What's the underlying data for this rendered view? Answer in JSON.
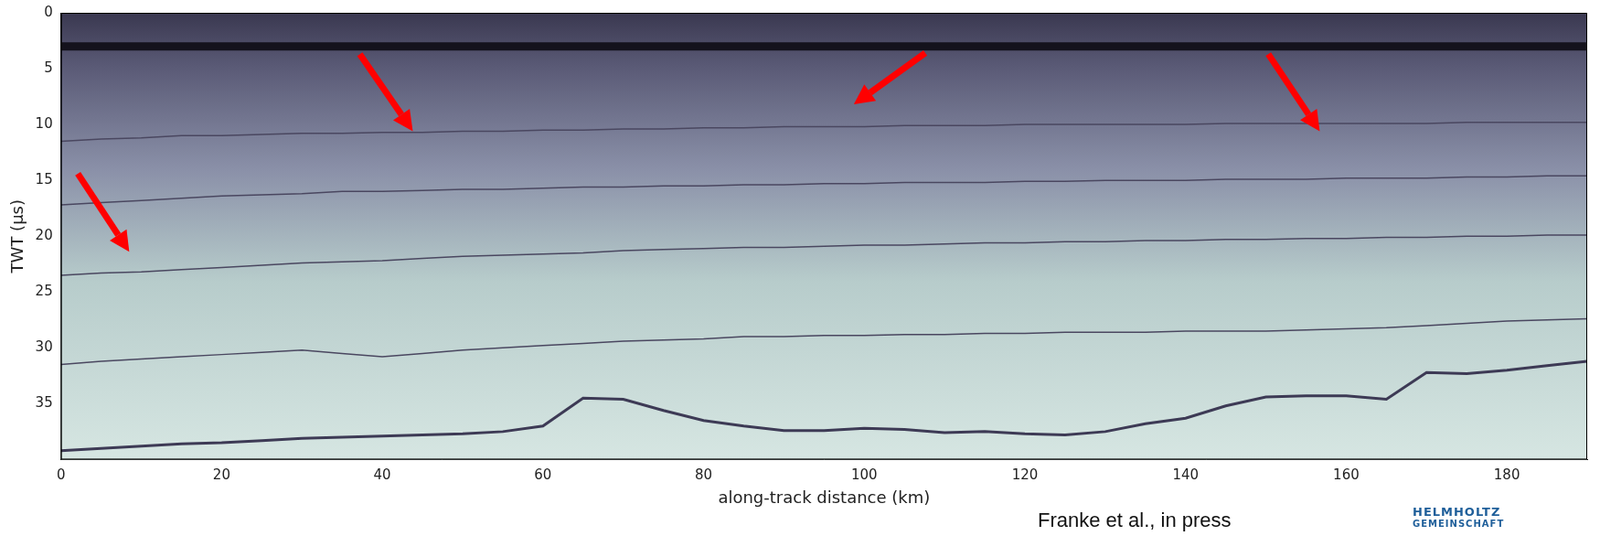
{
  "chart_data": {
    "type": "line",
    "x_label": "along-track distance (km)",
    "y_label": "TWT (µs)",
    "x": [
      0,
      5,
      10,
      15,
      20,
      25,
      30,
      35,
      40,
      45,
      50,
      55,
      60,
      65,
      70,
      75,
      80,
      85,
      90,
      95,
      100,
      105,
      110,
      115,
      120,
      125,
      130,
      135,
      140,
      145,
      150,
      155,
      160,
      165,
      170,
      175,
      180,
      185,
      190
    ],
    "series": [
      {
        "color": "#14121c",
        "values": [
          3,
          3,
          3,
          3,
          3,
          3,
          3,
          3,
          3,
          3,
          3,
          3,
          3,
          3,
          3,
          3,
          3,
          3,
          3,
          3,
          3,
          3,
          3,
          3,
          3,
          3,
          3,
          3,
          3,
          3,
          3,
          3,
          3,
          3,
          3,
          3,
          3,
          3,
          3
        ]
      },
      {
        "color": "#4a4760",
        "values": [
          11.5,
          11.3,
          11.2,
          11.0,
          11.0,
          10.9,
          10.8,
          10.8,
          10.7,
          10.7,
          10.6,
          10.6,
          10.5,
          10.5,
          10.4,
          10.4,
          10.3,
          10.3,
          10.2,
          10.2,
          10.2,
          10.1,
          10.1,
          10.1,
          10.0,
          10.0,
          10.0,
          10.0,
          10.0,
          9.9,
          9.9,
          9.9,
          9.9,
          9.9,
          9.9,
          9.8,
          9.8,
          9.8,
          9.8
        ]
      },
      {
        "color": "#4a4760",
        "values": [
          17.2,
          17.0,
          16.8,
          16.6,
          16.4,
          16.3,
          16.2,
          16.0,
          16.0,
          15.9,
          15.8,
          15.8,
          15.7,
          15.6,
          15.6,
          15.5,
          15.5,
          15.4,
          15.4,
          15.3,
          15.3,
          15.2,
          15.2,
          15.2,
          15.1,
          15.1,
          15.0,
          15.0,
          15.0,
          14.9,
          14.9,
          14.9,
          14.8,
          14.8,
          14.8,
          14.7,
          14.7,
          14.6,
          14.6
        ]
      },
      {
        "color": "#4a4760",
        "values": [
          23.5,
          23.3,
          23.2,
          23.0,
          22.8,
          22.6,
          22.4,
          22.3,
          22.2,
          22.0,
          21.8,
          21.7,
          21.6,
          21.5,
          21.3,
          21.2,
          21.1,
          21.0,
          21.0,
          20.9,
          20.8,
          20.8,
          20.7,
          20.6,
          20.6,
          20.5,
          20.5,
          20.4,
          20.4,
          20.3,
          20.3,
          20.2,
          20.2,
          20.1,
          20.1,
          20.0,
          20.0,
          19.9,
          19.9
        ]
      },
      {
        "color": "#4a4760",
        "values": [
          31.5,
          31.2,
          31.0,
          30.8,
          30.6,
          30.4,
          30.2,
          30.5,
          30.8,
          30.5,
          30.2,
          30.0,
          29.8,
          29.6,
          29.4,
          29.3,
          29.2,
          29.0,
          29.0,
          28.9,
          28.9,
          28.8,
          28.8,
          28.7,
          28.7,
          28.6,
          28.6,
          28.6,
          28.5,
          28.5,
          28.5,
          28.4,
          28.3,
          28.2,
          28.0,
          27.8,
          27.6,
          27.5,
          27.4
        ]
      },
      {
        "color": "#3d3a55",
        "values": [
          39.2,
          39.0,
          38.8,
          38.6,
          38.5,
          38.3,
          38.1,
          38.0,
          37.9,
          37.8,
          37.7,
          37.5,
          37.0,
          34.5,
          34.6,
          35.6,
          36.5,
          37.0,
          37.4,
          37.4,
          37.2,
          37.3,
          37.6,
          37.5,
          37.7,
          37.8,
          37.5,
          36.8,
          36.3,
          35.2,
          34.4,
          34.3,
          34.3,
          34.6,
          32.2,
          32.3,
          32.0,
          31.6,
          31.2
        ]
      }
    ],
    "xlim": [
      0,
      190
    ],
    "ylim": [
      40,
      0
    ],
    "xticks": [
      0,
      20,
      40,
      60,
      80,
      100,
      120,
      140,
      160,
      180
    ],
    "yticks": [
      0,
      5,
      10,
      15,
      20,
      25,
      30,
      35
    ],
    "grid": false,
    "annotations": [
      {
        "type": "arrow",
        "from": [
          2.1,
          14.4
        ],
        "to": [
          8.5,
          21.4
        ],
        "color": "#ff0000"
      },
      {
        "type": "arrow",
        "from": [
          37.2,
          3.7
        ],
        "to": [
          43.8,
          10.6
        ],
        "color": "#ff0000"
      },
      {
        "type": "arrow",
        "from": [
          107.6,
          3.6
        ],
        "to": [
          98.7,
          8.2
        ],
        "color": "#ff0000"
      },
      {
        "type": "arrow",
        "from": [
          150.3,
          3.7
        ],
        "to": [
          156.7,
          10.6
        ],
        "color": "#ff0000"
      }
    ]
  },
  "credit": "Franke et al., in press",
  "logo": [
    "HELMHOLTZ",
    "GEMEINSCHAFT"
  ]
}
